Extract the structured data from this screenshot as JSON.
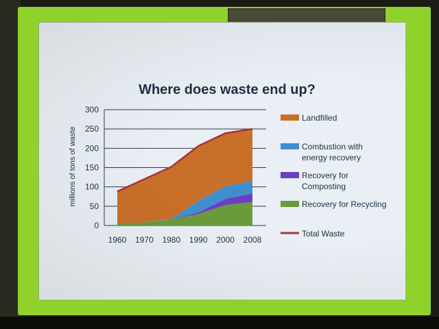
{
  "chart_data": {
    "type": "area",
    "title": "Where does waste end up?",
    "xlabel": "",
    "ylabel": "millions of tons of waste",
    "categories": [
      "1960",
      "1970",
      "1980",
      "1990",
      "2000",
      "2008"
    ],
    "ylim": [
      0,
      300
    ],
    "yticks": [
      0,
      50,
      100,
      150,
      200,
      250,
      300
    ],
    "grid": true,
    "legend_position": "right",
    "stacked": true,
    "series": [
      {
        "name": "Recovery for Recycling",
        "values": [
          5,
          8,
          15,
          30,
          53,
          61
        ],
        "color": "#6b9a3a"
      },
      {
        "name": "Recovery for Composting",
        "values": [
          0,
          0,
          0,
          4,
          16,
          22
        ],
        "color": "#6a3fc4"
      },
      {
        "name": "Combustion with energy recovery",
        "values": [
          0,
          0,
          2,
          30,
          33,
          32
        ],
        "color": "#3f8fcf"
      },
      {
        "name": "Landfilled",
        "values": [
          83,
          112,
          135,
          142,
          137,
          135
        ],
        "color": "#c8702a"
      }
    ],
    "total": {
      "name": "Total Waste",
      "values": [
        88,
        120,
        152,
        206,
        239,
        250
      ],
      "color": "#a83434"
    },
    "legend_order": [
      "Landfilled",
      "Combustion with energy recovery",
      "Recovery for Composting",
      "Recovery for Recycling",
      "Total Waste"
    ],
    "legend_labels": [
      {
        "lines": [
          "Landfilled"
        ]
      },
      {
        "lines": [
          "Combustion with",
          "energy recovery"
        ]
      },
      {
        "lines": [
          "Recovery for",
          "Composting"
        ]
      },
      {
        "lines": [
          "Recovery for Recycling"
        ]
      },
      {
        "lines": [
          "Total Waste"
        ]
      }
    ]
  }
}
